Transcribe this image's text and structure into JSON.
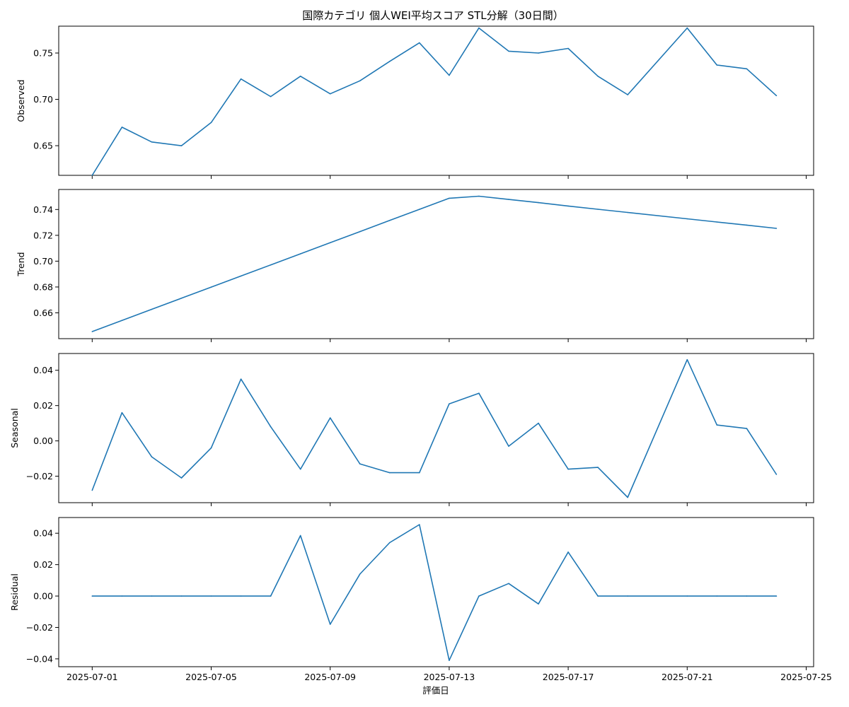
{
  "chart_data": {
    "type": "line",
    "title": "国際カテゴリ 個人WEI平均スコア STL分解（30日間）",
    "xlabel": "評価日",
    "x_ticks": [
      "2025-07-01",
      "2025-07-05",
      "2025-07-09",
      "2025-07-13",
      "2025-07-17",
      "2025-07-21",
      "2025-07-25"
    ],
    "x_range": [
      "2025-06-29T21:00",
      "2025-07-25T06:00"
    ],
    "dates": [
      "2025-07-01",
      "2025-07-02",
      "2025-07-03",
      "2025-07-04",
      "2025-07-05",
      "2025-07-06",
      "2025-07-07",
      "2025-07-08",
      "2025-07-09",
      "2025-07-10",
      "2025-07-11",
      "2025-07-12",
      "2025-07-13",
      "2025-07-14",
      "2025-07-15",
      "2025-07-16",
      "2025-07-17",
      "2025-07-18",
      "2025-07-19",
      "2025-07-21",
      "2025-07-22",
      "2025-07-23",
      "2025-07-24"
    ],
    "line_color": "#1f77b4",
    "panels": [
      {
        "ylabel": "Observed",
        "ylim": [
          0.618,
          0.779
        ],
        "y_ticks": [
          "0.65",
          "0.70",
          "0.75"
        ],
        "y_tick_values": [
          0.65,
          0.7,
          0.75
        ],
        "values": [
          0.618,
          0.67,
          0.654,
          0.65,
          0.675,
          0.722,
          0.703,
          0.725,
          0.706,
          0.72,
          0.741,
          0.761,
          0.726,
          0.777,
          0.752,
          0.75,
          0.755,
          0.725,
          0.705,
          0.777,
          0.737,
          0.733,
          0.704
        ]
      },
      {
        "ylabel": "Trend",
        "ylim": [
          0.64,
          0.7555
        ],
        "y_ticks": [
          "0.66",
          "0.68",
          "0.70",
          "0.72",
          "0.74"
        ],
        "y_tick_values": [
          0.66,
          0.68,
          0.7,
          0.72,
          0.74
        ],
        "values": [
          0.6455,
          0.6541,
          0.6627,
          0.6713,
          0.6799,
          0.6885,
          0.6971,
          0.7057,
          0.7143,
          0.7229,
          0.7315,
          0.7401,
          0.7487,
          0.7503,
          0.7478,
          0.7453,
          0.7427,
          0.7402,
          0.7377,
          0.7328,
          0.7303,
          0.7279,
          0.7254
        ]
      },
      {
        "ylabel": "Seasonal",
        "ylim": [
          -0.035,
          0.0495
        ],
        "y_ticks": [
          "−0.02",
          "0.00",
          "0.02",
          "0.04"
        ],
        "y_tick_values": [
          -0.02,
          0.0,
          0.02,
          0.04
        ],
        "values": [
          -0.028,
          0.016,
          -0.009,
          -0.021,
          -0.004,
          0.035,
          0.008,
          -0.016,
          0.013,
          -0.013,
          -0.018,
          -0.018,
          0.021,
          0.027,
          -0.003,
          0.01,
          -0.016,
          -0.015,
          -0.032,
          0.046,
          0.009,
          0.007,
          -0.019
        ]
      },
      {
        "ylabel": "Residual",
        "ylim": [
          -0.045,
          0.05
        ],
        "y_ticks": [
          "−0.04",
          "−0.02",
          "0.00",
          "0.02",
          "0.04"
        ],
        "y_tick_values": [
          -0.04,
          -0.02,
          0.0,
          0.02,
          0.04
        ],
        "values": [
          0.0,
          0.0,
          0.0,
          0.0,
          0.0,
          0.0,
          0.0,
          0.0385,
          -0.018,
          0.014,
          0.034,
          0.0455,
          -0.041,
          0.0,
          0.008,
          -0.005,
          0.028,
          0.0,
          0.0,
          0.0,
          0.0,
          0.0,
          0.0
        ]
      }
    ]
  }
}
